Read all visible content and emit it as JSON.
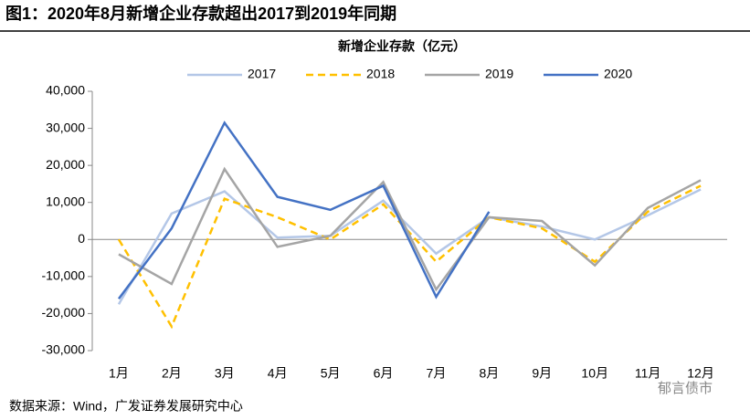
{
  "chart_data": {
    "type": "line",
    "header": "图1：2020年8月新增企业存款超出2017到2019年同期",
    "title": "新增企业存款（亿元）",
    "source": "数据来源：Wind，广发证券发展研究中心",
    "watermark": "郁言债市",
    "categories": [
      "1月",
      "2月",
      "3月",
      "4月",
      "5月",
      "6月",
      "7月",
      "8月",
      "9月",
      "10月",
      "11月",
      "12月"
    ],
    "series": [
      {
        "name": "2017",
        "color": "#b4c7e7",
        "dash": false,
        "values": [
          -17500,
          7000,
          13000,
          500,
          1000,
          10500,
          -3800,
          6000,
          3500,
          0,
          6500,
          13500
        ]
      },
      {
        "name": "2018",
        "color": "#ffc000",
        "dash": true,
        "values": [
          0,
          -23500,
          11000,
          6000,
          0,
          9500,
          -6000,
          6000,
          3000,
          -6000,
          7500,
          14500
        ]
      },
      {
        "name": "2019",
        "color": "#a5a5a5",
        "dash": false,
        "values": [
          -4000,
          -12000,
          19000,
          -2000,
          1000,
          15500,
          -13500,
          6000,
          5000,
          -7000,
          8500,
          16000
        ]
      },
      {
        "name": "2020",
        "color": "#4472c4",
        "dash": false,
        "values": [
          -16000,
          3000,
          31500,
          11500,
          8000,
          14500,
          -15500,
          7500,
          null,
          null,
          null,
          null
        ]
      }
    ],
    "ylim": [
      -30000,
      40000
    ],
    "yticks": [
      {
        "value": 40000,
        "label": "40,000"
      },
      {
        "value": 30000,
        "label": "30,000"
      },
      {
        "value": 20000,
        "label": "20,000"
      },
      {
        "value": 10000,
        "label": "10,000"
      },
      0,
      {
        "value": -10000,
        "label": "-10,000"
      },
      {
        "value": -20000,
        "label": "-20,000"
      },
      {
        "value": -30000,
        "label": "-30,000"
      }
    ]
  }
}
